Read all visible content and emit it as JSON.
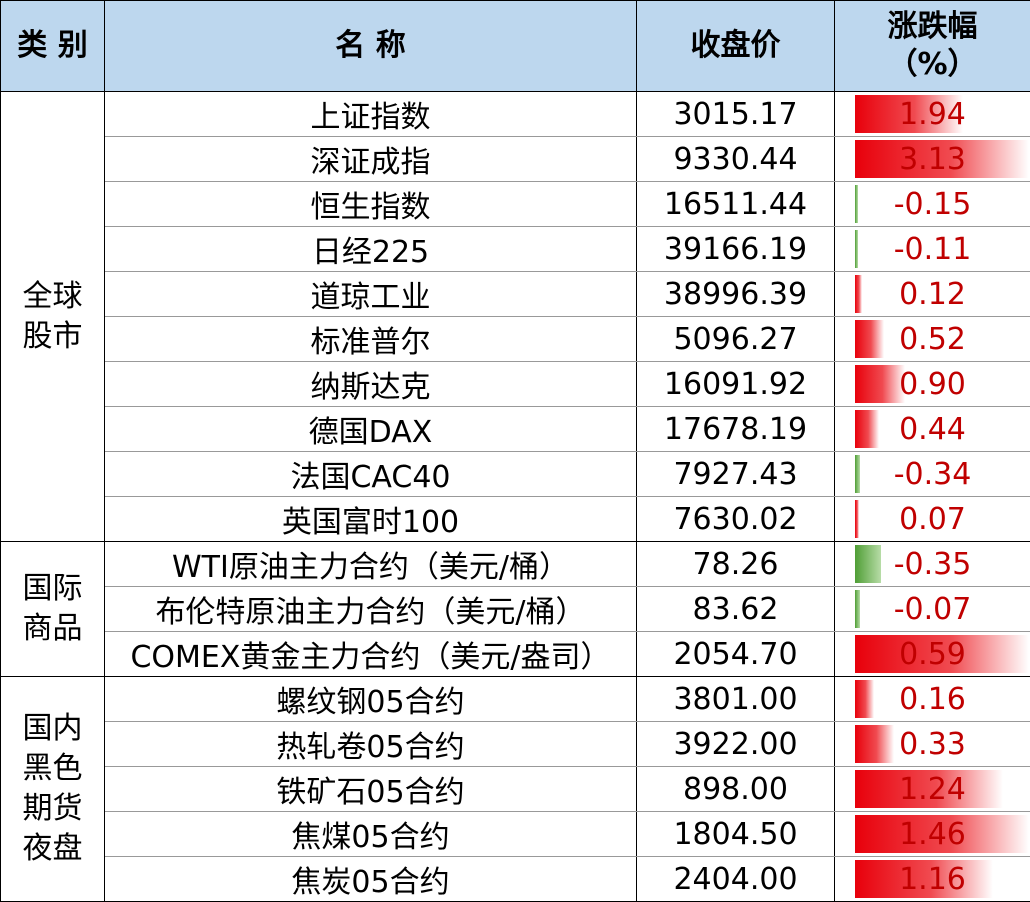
{
  "header": {
    "category": "类 别",
    "name": "名 称",
    "close": "收盘价",
    "change_line1": "涨跌幅",
    "change_line2": "（%）"
  },
  "groups": [
    {
      "category": "全球股市",
      "category_lines": [
        "全球",
        "股市"
      ],
      "rows": [
        {
          "name": "上证指数",
          "close": "3015.17",
          "change": "1.94",
          "change_value": 1.94
        },
        {
          "name": "深证成指",
          "close": "9330.44",
          "change": "3.13",
          "change_value": 3.13
        },
        {
          "name": "恒生指数",
          "close": "16511.44",
          "change": "-0.15",
          "change_value": -0.15
        },
        {
          "name": "日经225",
          "close": "39166.19",
          "change": "-0.11",
          "change_value": -0.11
        },
        {
          "name": "道琼工业",
          "close": "38996.39",
          "change": "0.12",
          "change_value": 0.12
        },
        {
          "name": "标准普尔",
          "close": "5096.27",
          "change": "0.52",
          "change_value": 0.52
        },
        {
          "name": "纳斯达克",
          "close": "16091.92",
          "change": "0.90",
          "change_value": 0.9
        },
        {
          "name": "德国DAX",
          "close": "17678.19",
          "change": "0.44",
          "change_value": 0.44
        },
        {
          "name": "法国CAC40",
          "close": "7927.43",
          "change": "-0.34",
          "change_value": -0.34
        },
        {
          "name": "英国富时100",
          "close": "7630.02",
          "change": "0.07",
          "change_value": 0.07
        }
      ]
    },
    {
      "category": "国际商品",
      "category_lines": [
        "国际",
        "商品"
      ],
      "rows": [
        {
          "name": "WTI原油主力合约（美元/桶）",
          "close": "78.26",
          "change": "-0.35",
          "change_value": -0.35
        },
        {
          "name": "布伦特原油主力合约（美元/桶）",
          "close": "83.62",
          "change": "-0.07",
          "change_value": -0.07
        },
        {
          "name": "COMEX黄金主力合约（美元/盎司）",
          "close": "2054.70",
          "change": "0.59",
          "change_value": 0.59
        }
      ]
    },
    {
      "category": "国内黑色期货夜盘",
      "category_lines": [
        "国内",
        "黑色",
        "期货",
        "夜盘"
      ],
      "rows": [
        {
          "name": "螺纹钢05合约",
          "close": "3801.00",
          "change": "0.16",
          "change_value": 0.16
        },
        {
          "name": "热轧卷05合约",
          "close": "3922.00",
          "change": "0.33",
          "change_value": 0.33
        },
        {
          "name": "铁矿石05合约",
          "close": "898.00",
          "change": "1.24",
          "change_value": 1.24
        },
        {
          "name": "焦煤05合约",
          "close": "1804.50",
          "change": "1.46",
          "change_value": 1.46
        },
        {
          "name": "焦炭05合约",
          "close": "2404.00",
          "change": "1.16",
          "change_value": 1.16
        }
      ]
    }
  ],
  "colors": {
    "header_bg": "#bdd7ee",
    "change_text": "#c00000",
    "bar_up": "#e8000b",
    "bar_down": "#4f9e35"
  }
}
